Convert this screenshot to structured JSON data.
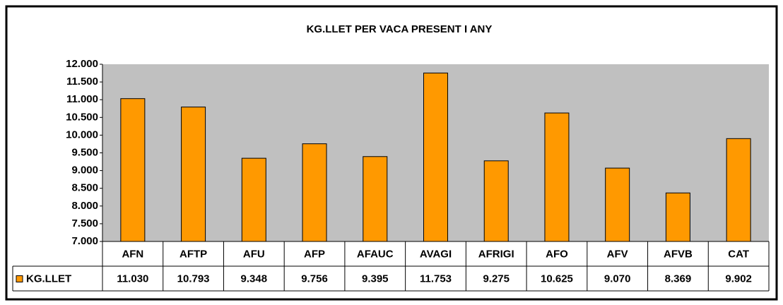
{
  "chart_data": {
    "type": "bar",
    "title": "KG.LLET PER VACA PRESENT I ANY",
    "categories": [
      "AFN",
      "AFTP",
      "AFU",
      "AFP",
      "AFAUC",
      "AVAGI",
      "AFRIGI",
      "AFO",
      "AFV",
      "AFVB",
      "CAT"
    ],
    "series": [
      {
        "name": "KG.LLET",
        "color": "#ff9900",
        "values": [
          11030,
          10793,
          9348,
          9756,
          9395,
          11753,
          9275,
          10625,
          9070,
          8369,
          9902
        ],
        "value_labels": [
          "11.030",
          "10.793",
          "9.348",
          "9.756",
          "9.395",
          "11.753",
          "9.275",
          "10.625",
          "9.070",
          "8.369",
          "9.902"
        ]
      }
    ],
    "ylim": [
      7000,
      12000
    ],
    "yticks": [
      {
        "value": 7000,
        "label": "7.000"
      },
      {
        "value": 7500,
        "label": "7.500"
      },
      {
        "value": 8000,
        "label": "8.000"
      },
      {
        "value": 8500,
        "label": "8.500"
      },
      {
        "value": 9000,
        "label": "9.000"
      },
      {
        "value": 9500,
        "label": "9.500"
      },
      {
        "value": 10000,
        "label": "10.000"
      },
      {
        "value": 10500,
        "label": "10.500"
      },
      {
        "value": 11000,
        "label": "11.000"
      },
      {
        "value": 11500,
        "label": "11.500"
      },
      {
        "value": 12000,
        "label": "12.000"
      }
    ],
    "grid": false,
    "plot_background": "#c0c0c0"
  }
}
